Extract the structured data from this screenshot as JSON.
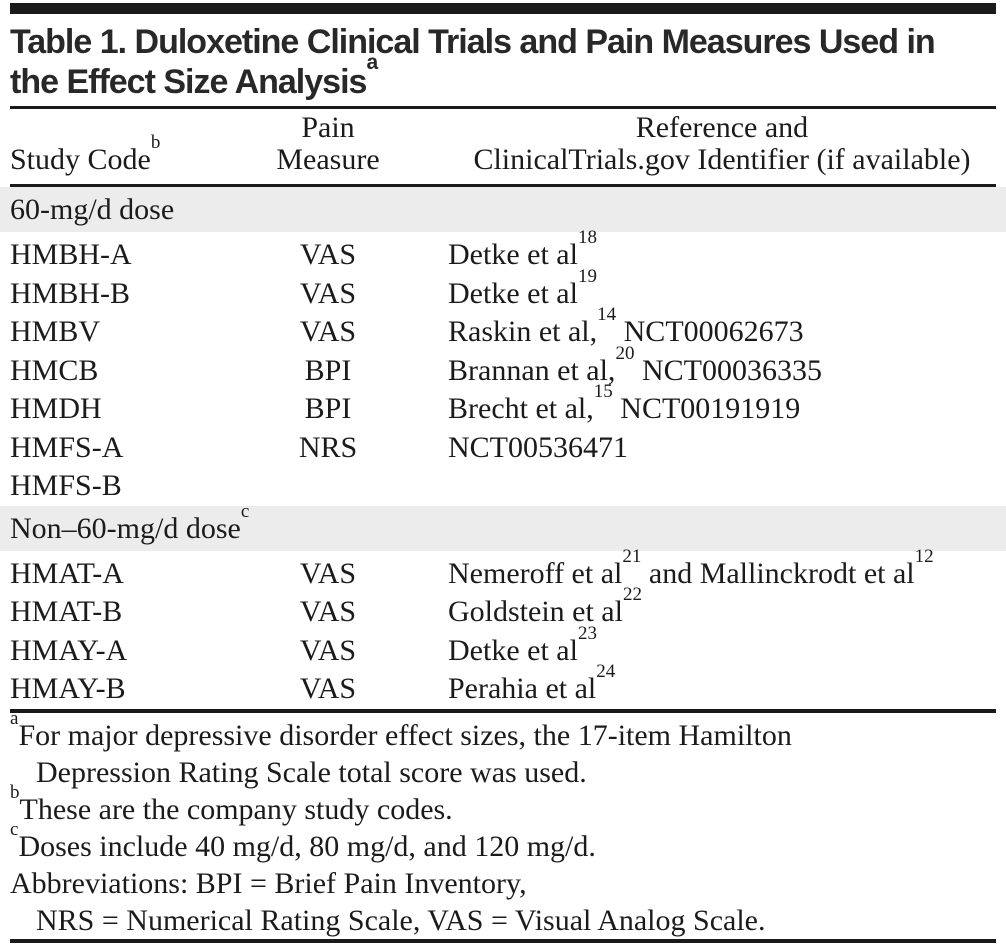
{
  "title": {
    "line1": "Table 1. Duloxetine Clinical Trials and Pain Measures Used in",
    "line2": "the Effect Size Analysis",
    "superscript": "a"
  },
  "table": {
    "header": {
      "study_code": {
        "label": "Study Code",
        "superscript": "b"
      },
      "pain_measure": {
        "line1": "Pain",
        "line2": "Measure"
      },
      "reference": {
        "line1": "Reference and",
        "line2": "ClinicalTrials.gov Identifier (if available)"
      }
    },
    "sections": [
      {
        "label": "60-mg/d dose",
        "rows": [
          {
            "study_code": "HMBH-A",
            "pain_measure": "VAS",
            "ref": {
              "main": "Detke et al",
              "sup": "18"
            }
          },
          {
            "study_code": "HMBH-B",
            "pain_measure": "VAS",
            "ref": {
              "main": "Detke et al",
              "sup": "19"
            }
          },
          {
            "study_code": "HMBV",
            "pain_measure": "VAS",
            "ref": {
              "main": "Raskin et al,",
              "sup": "14",
              "tail": " NCT00062673"
            }
          },
          {
            "study_code": "HMCB",
            "pain_measure": "BPI",
            "ref": {
              "main": "Brannan et al,",
              "sup": "20",
              "tail": " NCT00036335"
            }
          },
          {
            "study_code": "HMDH",
            "pain_measure": "BPI",
            "ref": {
              "main": "Brecht et al,",
              "sup": "15",
              "tail": " NCT00191919"
            }
          },
          {
            "study_code": "HMFS-A",
            "pain_measure": "NRS",
            "ref": {
              "main": "NCT00536471"
            }
          },
          {
            "study_code": "HMFS-B",
            "pain_measure": "",
            "ref": {
              "main": ""
            }
          }
        ]
      },
      {
        "label": "Non–60-mg/d dose",
        "superscript": "c",
        "rows": [
          {
            "study_code": "HMAT-A",
            "pain_measure": "VAS",
            "ref": {
              "main": "Nemeroff et al",
              "sup": "21",
              "tail": " and Mallinckrodt et al",
              "sup2": "12"
            }
          },
          {
            "study_code": "HMAT-B",
            "pain_measure": "VAS",
            "ref": {
              "main": "Goldstein et al",
              "sup": "22"
            }
          },
          {
            "study_code": "HMAY-A",
            "pain_measure": "VAS",
            "ref": {
              "main": "Detke et al",
              "sup": "23"
            }
          },
          {
            "study_code": "HMAY-B",
            "pain_measure": "VAS",
            "ref": {
              "main": "Perahia et al",
              "sup": "24"
            }
          }
        ]
      }
    ]
  },
  "footnotes": [
    {
      "sup": "a",
      "lines": [
        "For major depressive disorder effect sizes, the 17-item Hamilton",
        "Depression Rating Scale total score was used."
      ]
    },
    {
      "sup": "b",
      "lines": [
        "These are the company study codes."
      ]
    },
    {
      "sup": "c",
      "lines": [
        "Doses include 40 mg/d, 80 mg/d, and 120 mg/d."
      ]
    },
    {
      "sup": "",
      "lines": [
        "Abbreviations: BPI = Brief Pain Inventory,",
        "NRS = Numerical Rating Scale, VAS = Visual Analog Scale."
      ]
    }
  ],
  "colors": {
    "text": "#1b1b1b",
    "title_text": "#282828",
    "section_band": "#ececec",
    "rule": "#1a1a1a",
    "background": "#ffffff"
  }
}
